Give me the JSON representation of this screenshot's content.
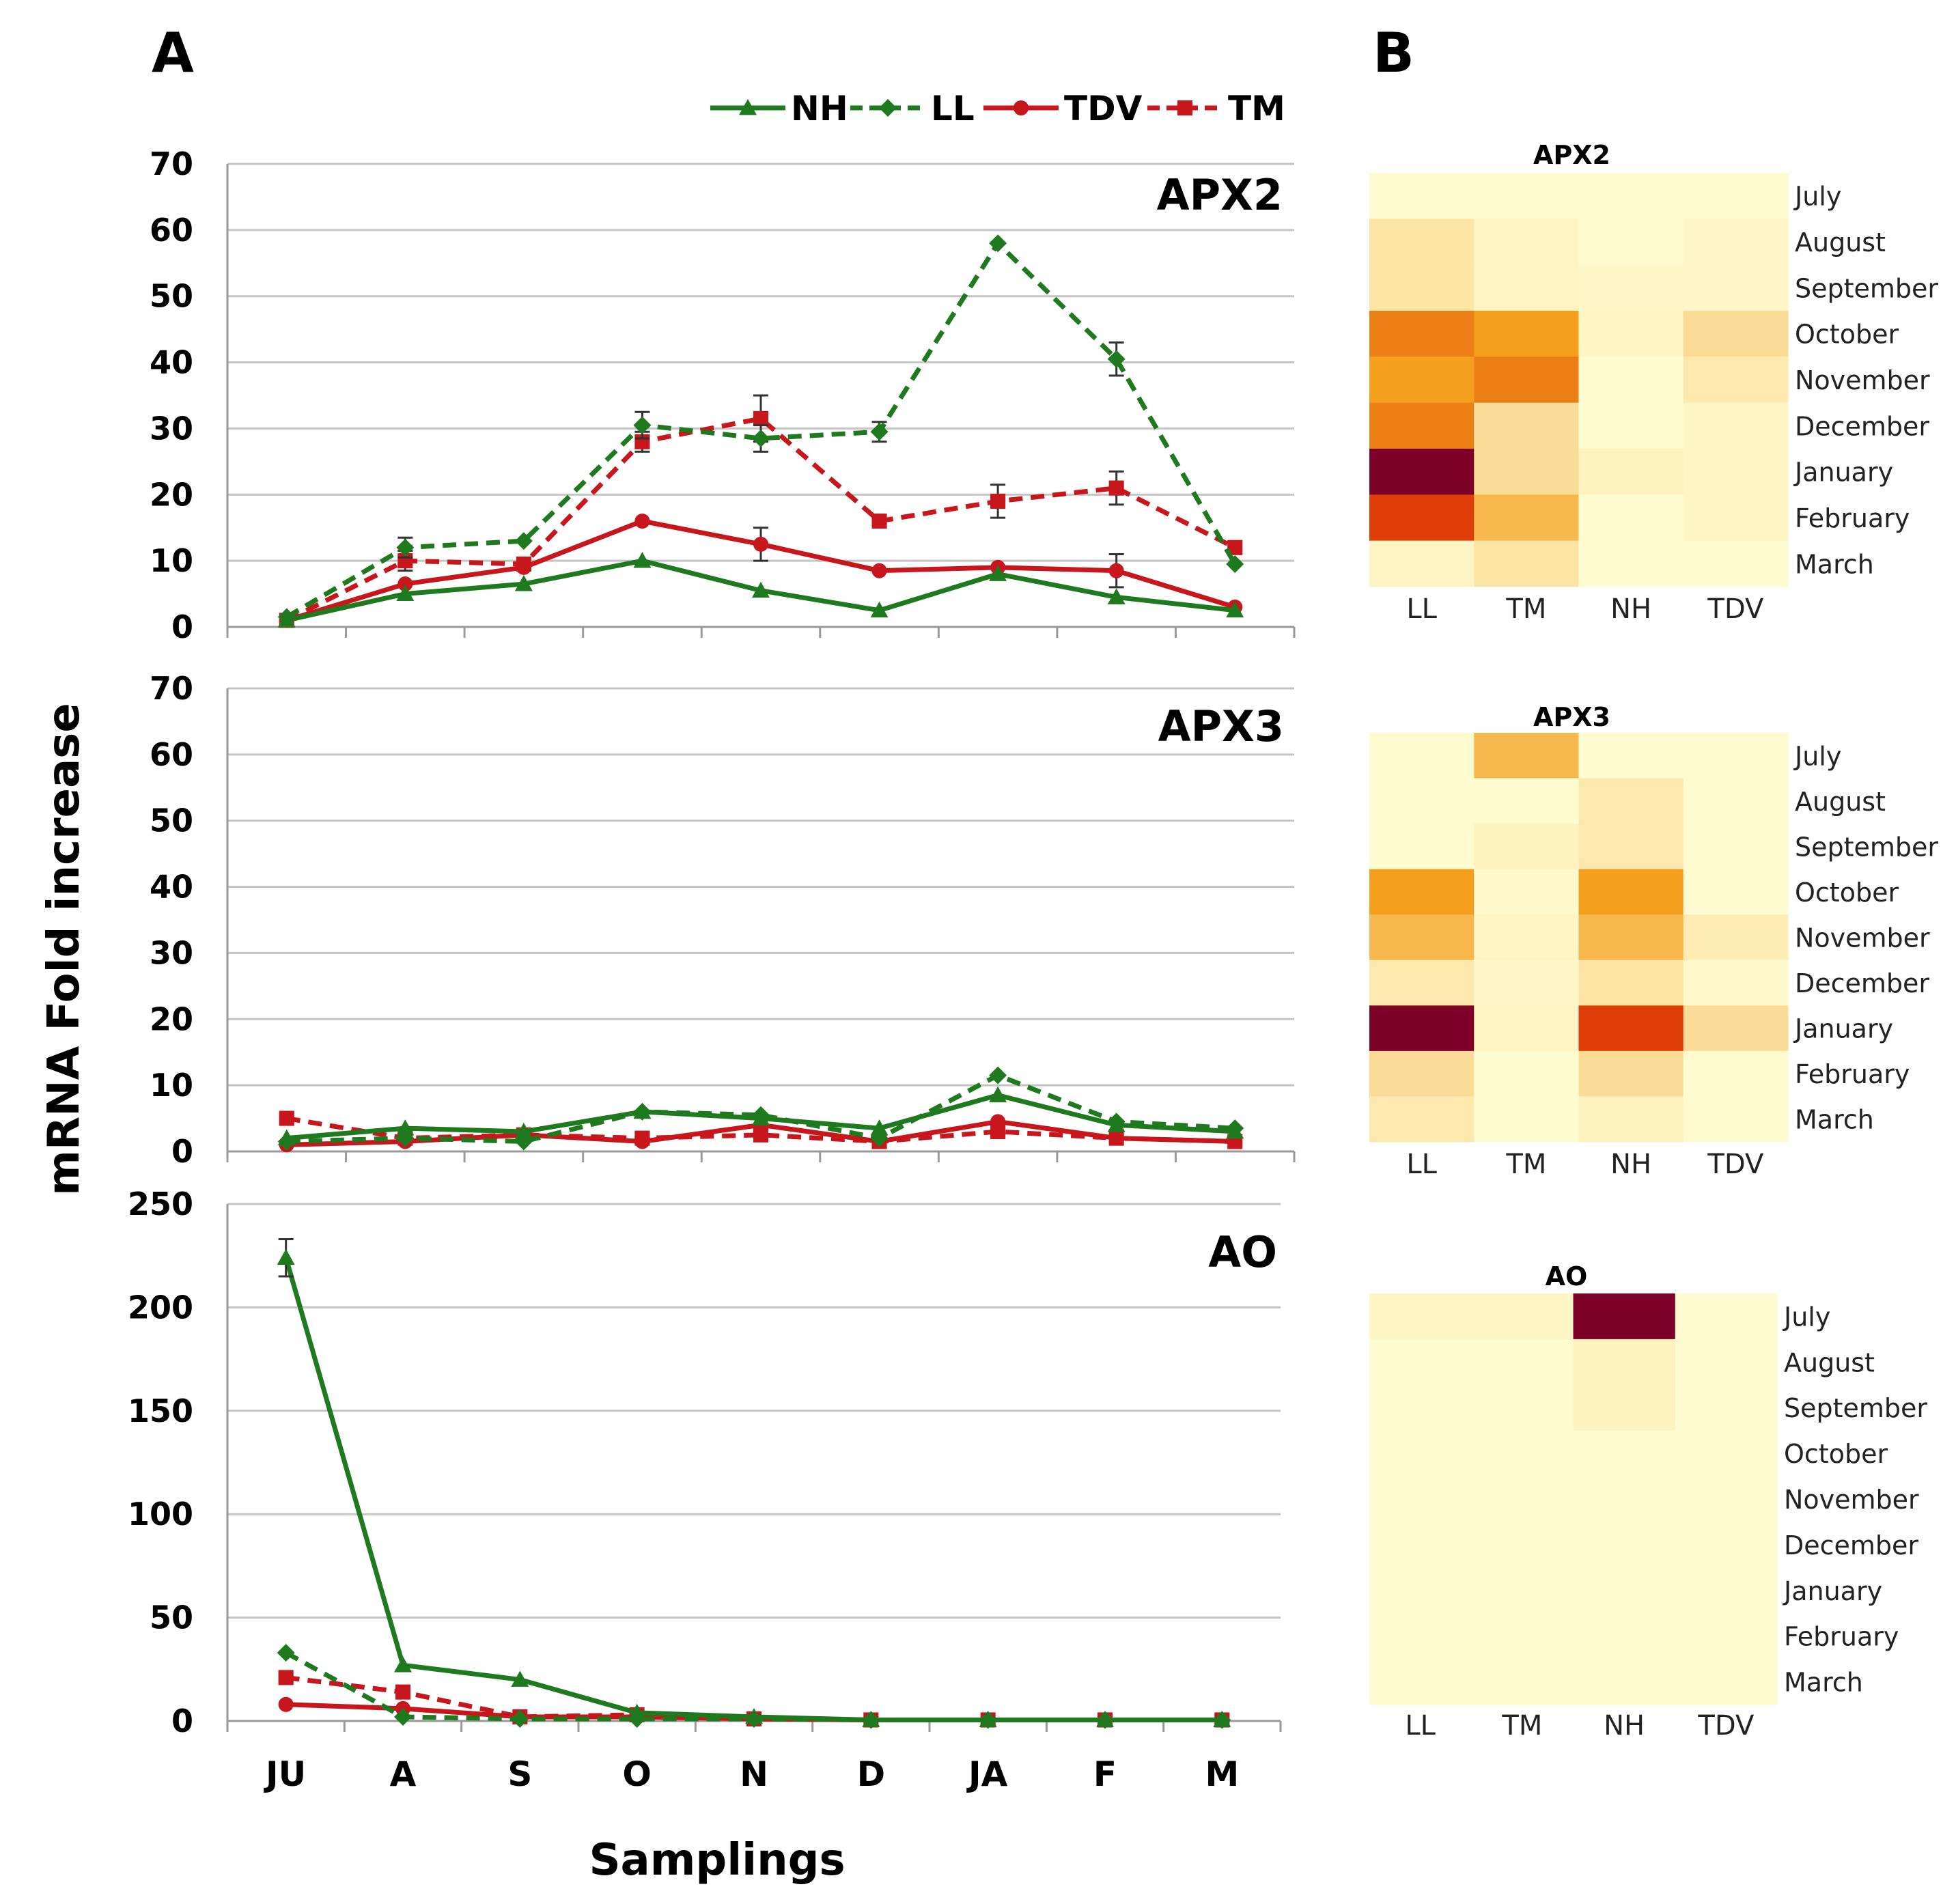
{
  "figure": {
    "panel_a_label": "A",
    "panel_b_label": "B",
    "y_axis_title": "mRNA Fold increase",
    "x_axis_title": "Samplings",
    "legend": [
      {
        "key": "NH",
        "label": "NH",
        "color": "#1f7a1f",
        "dash": false,
        "marker": "triangle"
      },
      {
        "key": "LL",
        "label": "LL",
        "color": "#1f7a1f",
        "dash": true,
        "marker": "diamond"
      },
      {
        "key": "TDV",
        "label": "TDV",
        "color": "#c8161d",
        "dash": false,
        "marker": "circle"
      },
      {
        "key": "TM",
        "label": "TM",
        "color": "#c8161d",
        "dash": true,
        "marker": "square"
      }
    ]
  },
  "chart_data": [
    {
      "type": "line",
      "title": "APX2",
      "categories": [
        "JU",
        "A",
        "S",
        "O",
        "N",
        "D",
        "JA",
        "F",
        "M"
      ],
      "ylim": [
        0,
        70
      ],
      "yticks": [
        0,
        10,
        20,
        30,
        40,
        50,
        60,
        70
      ],
      "show_xtick_labels": false,
      "series": [
        {
          "name": "NH",
          "values": [
            1,
            5,
            6.5,
            10,
            5.5,
            2.5,
            8,
            4.5,
            2.5
          ]
        },
        {
          "name": "LL",
          "values": [
            1.5,
            12,
            13,
            30.5,
            28.5,
            29.5,
            58,
            40.5,
            9.5
          ],
          "errors": [
            0,
            1.5,
            0,
            2,
            2,
            1.5,
            0,
            2.5,
            0
          ]
        },
        {
          "name": "TDV",
          "values": [
            1,
            6.5,
            9,
            16,
            12.5,
            8.5,
            9,
            8.5,
            3
          ],
          "errors": [
            0,
            0,
            0,
            0,
            2.5,
            0,
            0,
            2.5,
            0
          ]
        },
        {
          "name": "TM",
          "values": [
            1,
            10,
            9.5,
            28,
            31.5,
            16,
            19,
            21,
            12
          ],
          "errors": [
            0,
            1.5,
            0,
            1.5,
            3.5,
            0,
            2.5,
            2.5,
            0
          ]
        }
      ]
    },
    {
      "type": "line",
      "title": "APX3",
      "categories": [
        "JU",
        "A",
        "S",
        "O",
        "N",
        "D",
        "JA",
        "F",
        "M"
      ],
      "ylim": [
        0,
        70
      ],
      "yticks": [
        0,
        10,
        20,
        30,
        40,
        50,
        60,
        70
      ],
      "show_xtick_labels": false,
      "series": [
        {
          "name": "NH",
          "values": [
            2,
            3.5,
            3,
            6,
            5,
            3.5,
            8.5,
            4,
            3
          ]
        },
        {
          "name": "LL",
          "values": [
            1.5,
            2,
            1.5,
            6,
            5.5,
            2,
            11.5,
            4.5,
            3.5
          ]
        },
        {
          "name": "TDV",
          "values": [
            1,
            1.5,
            2.5,
            1.5,
            4,
            1.5,
            4.5,
            2,
            1.5
          ]
        },
        {
          "name": "TM",
          "values": [
            5,
            2,
            2.5,
            2,
            2.5,
            1.5,
            3,
            2,
            1.5
          ]
        }
      ]
    },
    {
      "type": "line",
      "title": "AO",
      "categories": [
        "JU",
        "A",
        "S",
        "O",
        "N",
        "D",
        "JA",
        "F",
        "M"
      ],
      "ylim": [
        0,
        250
      ],
      "yticks": [
        0,
        50,
        100,
        150,
        200,
        250
      ],
      "show_xtick_labels": true,
      "series": [
        {
          "name": "NH",
          "values": [
            224,
            27,
            20,
            4,
            2,
            0.5,
            0.5,
            0.5,
            0.5
          ],
          "errors": [
            9,
            0,
            0,
            0,
            0,
            0,
            0,
            0,
            0
          ]
        },
        {
          "name": "LL",
          "values": [
            33,
            2,
            1,
            1,
            1,
            0.5,
            0.5,
            0.5,
            0.5
          ]
        },
        {
          "name": "TDV",
          "values": [
            8,
            6,
            2,
            2,
            1,
            0.5,
            0.5,
            0.5,
            0.5
          ]
        },
        {
          "name": "TM",
          "values": [
            21,
            14,
            2,
            3,
            1,
            0.5,
            0.5,
            0.5,
            0.5
          ]
        }
      ]
    },
    {
      "type": "heatmap",
      "title": "APX2",
      "columns": [
        "LL",
        "TM",
        "NH",
        "TDV"
      ],
      "rows": [
        "July",
        "August",
        "September",
        "October",
        "November",
        "December",
        "January",
        "February",
        "March"
      ],
      "values": [
        [
          0.0,
          0.0,
          0.0,
          0.0
        ],
        [
          0.15,
          0.05,
          0.0,
          0.03
        ],
        [
          0.15,
          0.05,
          0.03,
          0.03
        ],
        [
          0.55,
          0.45,
          0.04,
          0.2
        ],
        [
          0.45,
          0.55,
          0.0,
          0.12
        ],
        [
          0.55,
          0.2,
          0.0,
          0.04
        ],
        [
          1.0,
          0.2,
          0.06,
          0.04
        ],
        [
          0.75,
          0.35,
          0.0,
          0.04
        ],
        [
          0.05,
          0.15,
          0.0,
          0.0
        ]
      ]
    },
    {
      "type": "heatmap",
      "title": "APX3",
      "columns": [
        "LL",
        "TM",
        "NH",
        "TDV"
      ],
      "rows": [
        "July",
        "August",
        "September",
        "October",
        "November",
        "December",
        "January",
        "February",
        "March"
      ],
      "values": [
        [
          0.0,
          0.35,
          0.0,
          0.0
        ],
        [
          0.0,
          0.0,
          0.12,
          0.0
        ],
        [
          0.0,
          0.06,
          0.12,
          0.0
        ],
        [
          0.45,
          0.02,
          0.45,
          0.0
        ],
        [
          0.35,
          0.05,
          0.35,
          0.1
        ],
        [
          0.12,
          0.03,
          0.15,
          0.02
        ],
        [
          1.0,
          0.05,
          0.75,
          0.2
        ],
        [
          0.2,
          0.0,
          0.2,
          0.0
        ],
        [
          0.12,
          0.0,
          0.06,
          0.0
        ]
      ]
    },
    {
      "type": "heatmap",
      "title": "AO",
      "columns": [
        "LL",
        "TM",
        "NH",
        "TDV"
      ],
      "rows": [
        "July",
        "August",
        "September",
        "October",
        "November",
        "December",
        "January",
        "February",
        "March"
      ],
      "values": [
        [
          0.04,
          0.04,
          1.0,
          0.0
        ],
        [
          0.0,
          0.0,
          0.06,
          0.0
        ],
        [
          0.0,
          0.0,
          0.06,
          0.0
        ],
        [
          0.0,
          0.0,
          0.0,
          0.0
        ],
        [
          0.0,
          0.0,
          0.0,
          0.0
        ],
        [
          0.0,
          0.0,
          0.0,
          0.0
        ],
        [
          0.0,
          0.0,
          0.0,
          0.0
        ],
        [
          0.0,
          0.0,
          0.0,
          0.0
        ],
        [
          0.0,
          0.0,
          0.0,
          0.0
        ]
      ]
    }
  ]
}
